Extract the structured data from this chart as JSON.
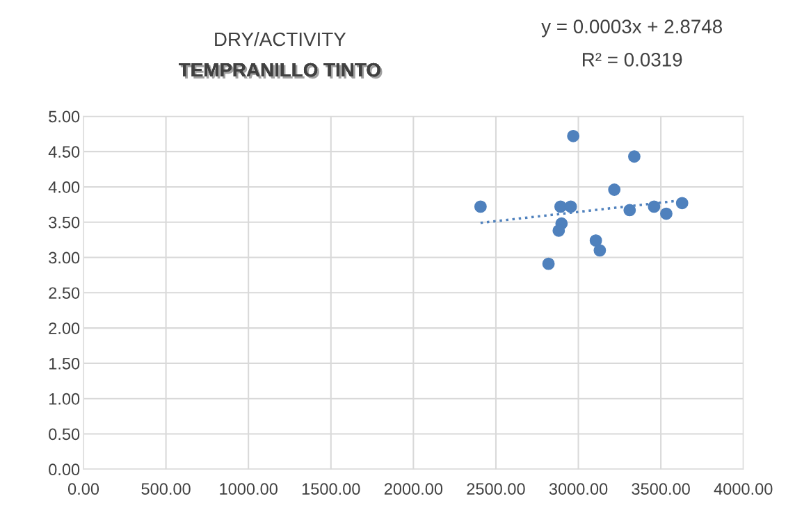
{
  "chart_data": {
    "type": "scatter",
    "title": "DRY/ACTIVITY",
    "subtitle": "TEMPRANILLO TINTO",
    "annotations": [
      "y = 0.0003x + 2.8748",
      "R² = 0.0319"
    ],
    "series": [
      {
        "color": "#4f81bd",
        "marker": "circle",
        "x": [
          2407,
          2969,
          3339,
          3218,
          2892,
          2954,
          2898,
          2881,
          3311,
          3459,
          3533,
          3629,
          3106,
          3130,
          2819
        ],
        "values": [
          3.72,
          4.72,
          4.43,
          3.96,
          3.72,
          3.72,
          3.48,
          3.38,
          3.67,
          3.72,
          3.62,
          3.77,
          3.24,
          3.1,
          2.91
        ]
      },
      {
        "type": "line",
        "color": "#4f81bd",
        "line_style": "dotted",
        "marker": "none",
        "x": [
          2407,
          3629
        ],
        "values": [
          3.49,
          3.81
        ]
      }
    ],
    "xlim": [
      0,
      4000
    ],
    "ylim": [
      0,
      5
    ],
    "xticks": [
      {
        "value": 0,
        "label": "0.00"
      },
      {
        "value": 500,
        "label": "500.00"
      },
      {
        "value": 1000,
        "label": "1000.00"
      },
      {
        "value": 1500,
        "label": "1500.00"
      },
      {
        "value": 2000,
        "label": "2000.00"
      },
      {
        "value": 2500,
        "label": "2500.00"
      },
      {
        "value": 3000,
        "label": "3000.00"
      },
      {
        "value": 3500,
        "label": "3500.00"
      },
      {
        "value": 4000,
        "label": "4000.00"
      }
    ],
    "yticks": [
      {
        "value": 0,
        "label": "0.00"
      },
      {
        "value": 0.5,
        "label": "0.50"
      },
      {
        "value": 1,
        "label": "1.00"
      },
      {
        "value": 1.5,
        "label": "1.50"
      },
      {
        "value": 2,
        "label": "2.00"
      },
      {
        "value": 2.5,
        "label": "2.50"
      },
      {
        "value": 3,
        "label": "3.00"
      },
      {
        "value": 3.5,
        "label": "3.50"
      },
      {
        "value": 4,
        "label": "4.00"
      },
      {
        "value": 4.5,
        "label": "4.50"
      },
      {
        "value": 5,
        "label": "5.00"
      }
    ],
    "grid": true,
    "legend": false
  }
}
